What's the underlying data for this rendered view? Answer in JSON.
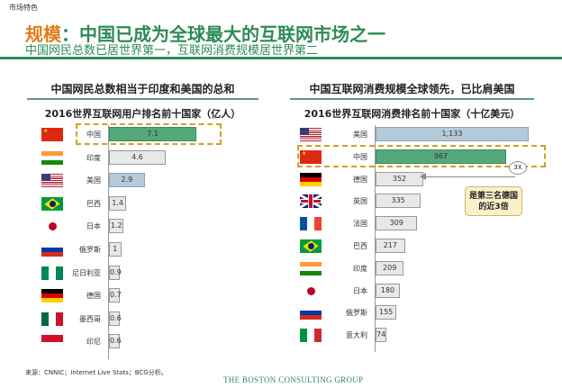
{
  "header": {
    "section": "市场特色",
    "title_highlight": "规模",
    "title_rest": "：中国已成为全球最大的互联网市场之一",
    "subtitle": "中国网民总数已居世界第一，互联网消费规模居世界第二"
  },
  "colors": {
    "accent_green": "#2e8b57",
    "accent_orange": "#e07b1a",
    "china_bar": "#55a879",
    "us_bar": "#b5cad8",
    "other_bar": "#e8e8e8",
    "highlight_dash": "#d4a020"
  },
  "chart_data": [
    {
      "type": "bar",
      "orientation": "horizontal",
      "panel_heading": "中国网民总数相当于印度和美国的总和",
      "title": "2016世界互联网用户排名前十国家（亿人）",
      "categories": [
        "中国",
        "印度",
        "美国",
        "巴西",
        "日本",
        "俄罗斯",
        "尼日利亚",
        "德国",
        "墨西哥",
        "印尼"
      ],
      "flags": [
        "china",
        "india",
        "usa",
        "brazil",
        "japan",
        "russia",
        "nigeria",
        "germany",
        "mexico",
        "indonesia"
      ],
      "values": [
        7.1,
        4.6,
        2.9,
        1.4,
        1.2,
        1.0,
        0.9,
        0.7,
        0.6,
        0.6
      ],
      "highlight": "中国"
    },
    {
      "type": "bar",
      "orientation": "horizontal",
      "panel_heading": "中国互联网消费规模全球领先，已比肩美国",
      "title": "2016世界互联网消费排名前十国家（十亿美元）",
      "categories": [
        "美国",
        "中国",
        "德国",
        "英国",
        "法国",
        "巴西",
        "印度",
        "日本",
        "俄罗斯",
        "意大利"
      ],
      "flags": [
        "usa",
        "china",
        "germany",
        "uk",
        "france",
        "brazil",
        "india",
        "japan",
        "russia",
        "italy"
      ],
      "values": [
        1133,
        967,
        352,
        335,
        309,
        217,
        209,
        180,
        155,
        74
      ],
      "value_labels": [
        "1,133",
        "967",
        "352",
        "335",
        "309",
        "217",
        "209",
        "180",
        "155",
        "74"
      ],
      "highlight": "中国",
      "annotation": {
        "badge": "3X",
        "callout": "是第三名德国的近3倍"
      }
    }
  ],
  "footer": {
    "source": "来源：CNNIC；Internet Live Stats；BCG分析。",
    "logo": "THE BOSTON CONSULTING GROUP"
  }
}
